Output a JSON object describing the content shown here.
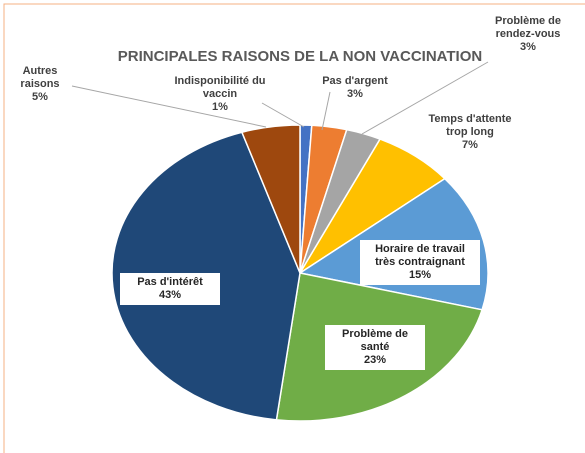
{
  "chart_data": {
    "type": "pie",
    "title": "PRINCIPALES RAISONS DE LA NON VACCINATION",
    "categories": [
      "Indisponibilité du vaccin",
      "Pas d'argent",
      "Problème de rendez-vous",
      "Temps d'attente trop long",
      "Horaire de travail très contraignant",
      "Problème de santé",
      "Pas d'intérêt",
      "Autres raisons"
    ],
    "values": [
      1,
      3,
      3,
      7,
      15,
      23,
      43,
      5
    ],
    "value_labels": [
      "1%",
      "3%",
      "3%",
      "7%",
      "15%",
      "23%",
      "43%",
      "5%"
    ],
    "colors": [
      "#4472c4",
      "#ed7d31",
      "#a5a5a5",
      "#ffc000",
      "#5b9bd5",
      "#70ad47",
      "#1f4878",
      "#9e480e"
    ]
  }
}
